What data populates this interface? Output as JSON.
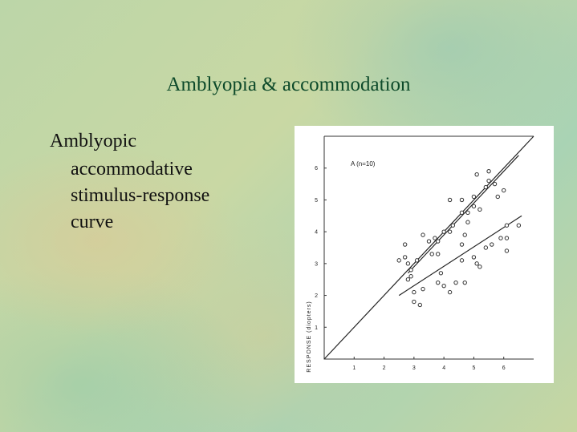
{
  "slide": {
    "title": "Amblyopia & accommodation",
    "bullet_lines": [
      "Amblyopic",
      "accommodative",
      "stimulus-response",
      "curve"
    ]
  },
  "chart_data": {
    "type": "scatter",
    "annotation": "A (n=10)",
    "y_label": "RESPONSE (diopters)",
    "xlim": [
      0,
      7
    ],
    "ylim": [
      0,
      7
    ],
    "xticks": [
      1,
      2,
      3,
      4,
      5,
      6
    ],
    "yticks": [
      1,
      2,
      3,
      4,
      5,
      6
    ],
    "color": "#333333",
    "x": [
      2.5,
      2.7,
      2.8,
      2.9,
      2.8,
      2.9,
      3.1,
      2.7,
      3.3,
      3.5,
      3.7,
      3.8,
      3.6,
      3.8,
      4.0,
      4.2,
      4.3,
      4.2,
      4.6,
      4.6,
      4.7,
      4.6,
      4.8,
      5.0,
      5.0,
      5.1,
      5.4,
      5.5,
      5.5,
      5.7,
      6.0,
      5.8,
      5.2,
      4.8,
      3.0,
      3.0,
      3.2,
      3.3,
      3.9,
      3.8,
      4.0,
      4.2,
      4.4,
      4.7,
      4.6,
      5.0,
      5.1,
      5.4,
      5.6,
      5.9,
      6.1,
      6.1,
      6.5,
      6.1,
      5.2
    ],
    "y": [
      3.1,
      3.2,
      3.0,
      2.6,
      2.5,
      2.8,
      3.1,
      3.6,
      3.9,
      3.7,
      3.8,
      3.7,
      3.3,
      3.3,
      4.0,
      4.0,
      4.2,
      5.0,
      5.0,
      4.6,
      3.9,
      3.6,
      4.3,
      4.8,
      5.1,
      5.8,
      5.4,
      5.6,
      5.9,
      5.5,
      5.3,
      5.1,
      4.7,
      4.6,
      2.1,
      1.8,
      1.7,
      2.2,
      2.7,
      2.4,
      2.3,
      2.1,
      2.4,
      2.4,
      3.1,
      3.2,
      3.0,
      3.5,
      3.6,
      3.8,
      3.8,
      4.2,
      4.2,
      3.4,
      2.9
    ],
    "fit_lines": [
      {
        "x": [
          0,
          7
        ],
        "y": [
          0,
          7
        ]
      },
      {
        "x": [
          2.8,
          6.5
        ],
        "y": [
          2.7,
          6.4
        ]
      },
      {
        "x": [
          2.5,
          6.6
        ],
        "y": [
          2.0,
          4.5
        ]
      }
    ]
  }
}
